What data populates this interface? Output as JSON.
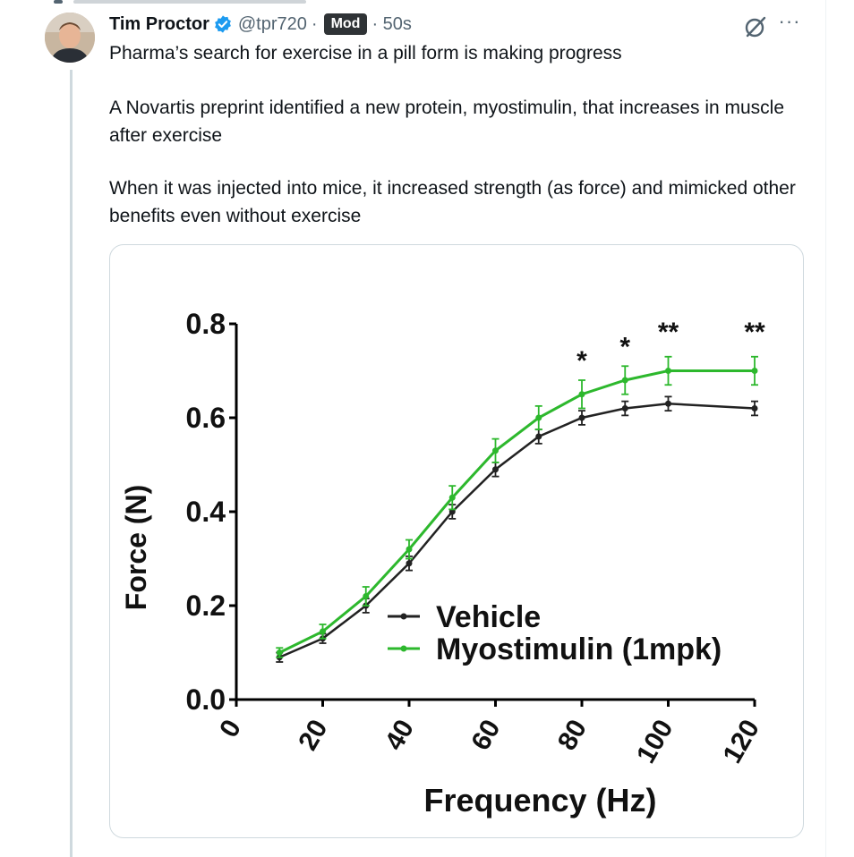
{
  "tweet": {
    "author": {
      "name": "Tim Proctor",
      "handle": "@tpr720",
      "verified": true,
      "badge": "Mod",
      "separator": "·",
      "time": "· 50s"
    },
    "paragraphs": [
      "Pharma’s search for exercise in a pill form is making progress",
      "A Novartis preprint identified a new protein, myostimulin, that increases in muscle after exercise",
      "When it was injected into mice, it increased strength (as force) and mimicked other benefits even without exercise"
    ],
    "icons": {
      "verified": "verified-check-icon",
      "grok": "grok-icon",
      "more": "more-options-icon"
    },
    "colors": {
      "verified_blue": "#1d9bf0",
      "badge_bg": "#2f3336",
      "text_secondary": "#536471"
    }
  },
  "chart_data": {
    "type": "line",
    "title": "",
    "xlabel": "Frequency (Hz)",
    "ylabel": "Force (N)",
    "xlim": [
      0,
      120
    ],
    "ylim": [
      0,
      0.8
    ],
    "x_ticks": [
      0,
      20,
      40,
      60,
      80,
      100,
      120
    ],
    "x_tick_labels": [
      "0",
      "20",
      "40",
      "60",
      "80",
      "100",
      "120"
    ],
    "y_ticks": [
      0.0,
      0.2,
      0.4,
      0.6,
      0.8
    ],
    "y_tick_labels": [
      "0.0",
      "0.2",
      "0.4",
      "0.6",
      "0.8"
    ],
    "grid": false,
    "legend_position": "lower-right",
    "x": [
      10,
      20,
      30,
      40,
      50,
      60,
      70,
      80,
      90,
      100,
      120
    ],
    "series": [
      {
        "name": "Vehicle",
        "color": "#222222",
        "values": [
          0.09,
          0.13,
          0.2,
          0.29,
          0.4,
          0.49,
          0.56,
          0.6,
          0.62,
          0.63,
          0.62
        ],
        "errors": [
          0.01,
          0.01,
          0.015,
          0.015,
          0.015,
          0.015,
          0.015,
          0.015,
          0.015,
          0.015,
          0.015
        ]
      },
      {
        "name": "Myostimulin (1mpk)",
        "color": "#2db82d",
        "values": [
          0.1,
          0.145,
          0.22,
          0.32,
          0.43,
          0.53,
          0.6,
          0.65,
          0.68,
          0.7,
          0.7
        ],
        "errors": [
          0.01,
          0.015,
          0.02,
          0.02,
          0.025,
          0.025,
          0.025,
          0.03,
          0.03,
          0.03,
          0.03
        ]
      }
    ],
    "annotations": [
      {
        "x": 80,
        "text": "*"
      },
      {
        "x": 90,
        "text": "*"
      },
      {
        "x": 100,
        "text": "**"
      },
      {
        "x": 120,
        "text": "**"
      }
    ]
  }
}
